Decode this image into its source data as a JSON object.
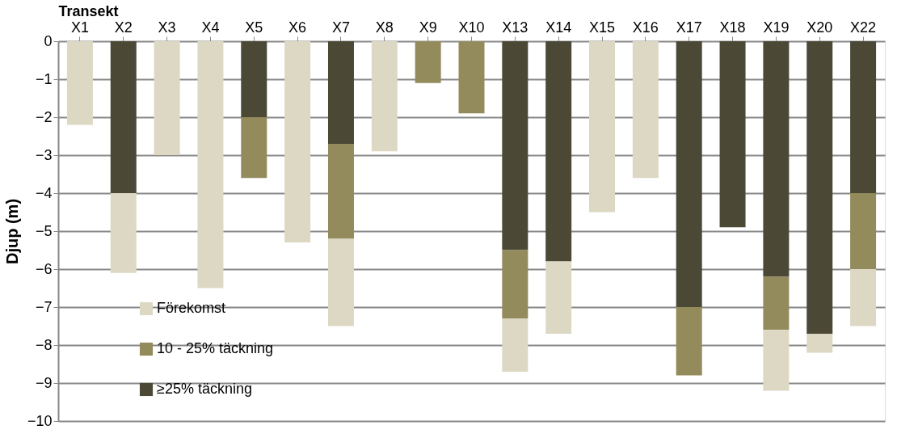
{
  "chart_data": {
    "type": "bar",
    "stacked": true,
    "xlabel": "Transekt",
    "ylabel": "Djup (m)",
    "categories": [
      "X1",
      "X2",
      "X3",
      "X4",
      "X5",
      "X6",
      "X7",
      "X8",
      "X9",
      "X10",
      "X13",
      "X14",
      "X15",
      "X16",
      "X17",
      "X18",
      "X19",
      "X20",
      "X22"
    ],
    "series": [
      {
        "name": "≥25% täckning",
        "color": "#4b4936",
        "values": [
          null,
          -4,
          null,
          null,
          -2,
          null,
          -2.7,
          null,
          null,
          null,
          -5.5,
          -5.8,
          null,
          null,
          -7,
          -4.9,
          -6.2,
          -7.7,
          -4
        ]
      },
      {
        "name": "10 - 25% täckning",
        "color": "#938b5c",
        "values": [
          null,
          null,
          null,
          null,
          -1.6,
          null,
          -2.5,
          null,
          -1.1,
          -1.9,
          -1.8,
          null,
          null,
          null,
          -1.8,
          null,
          -1.4,
          null,
          -2
        ]
      },
      {
        "name": "Förekomst",
        "color": "#ddd8c4",
        "values": [
          -2.2,
          -2.1,
          -3,
          -6.5,
          null,
          -5.3,
          -2.3,
          -2.9,
          null,
          null,
          -1.4,
          -1.9,
          -4.5,
          -3.6,
          null,
          null,
          -1.6,
          -0.5,
          -1.5
        ]
      }
    ],
    "ylim": [
      -10,
      0
    ],
    "yticks": [
      -10,
      -9,
      -8,
      -7,
      -6,
      -5,
      -4,
      -3,
      -2,
      -1,
      0
    ],
    "grid": "y",
    "legend": "bottom left"
  }
}
